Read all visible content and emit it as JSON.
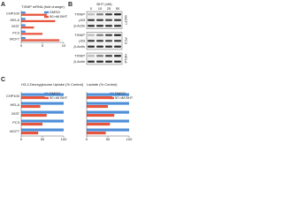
{
  "panels": {
    "a": "A",
    "b": "B",
    "c": "C"
  },
  "chart_data": [
    {
      "type": "hbar",
      "title": "TXNIP mRNA (fold change)",
      "categories": [
        "CHP100",
        "HELA",
        "293T",
        "PC3",
        "MCF7"
      ],
      "series": [
        {
          "name": "DMSO",
          "color": "#4f8fd8",
          "values": [
            1,
            1,
            1,
            1,
            1
          ]
        },
        {
          "name": "50 nM BHT",
          "color": "#e8553e",
          "values": [
            6,
            8,
            3,
            5,
            9
          ]
        }
      ],
      "xlim": [
        0,
        10
      ],
      "xticks": [
        0,
        5,
        10
      ],
      "legend": "top-right"
    },
    {
      "type": "hbar",
      "title": "H3-2-Deoxyglucose Uptake (% Control)",
      "categories": [
        "CHP100",
        "HELA",
        "293T",
        "PC3",
        "MCF7"
      ],
      "series": [
        {
          "name": "DMSO",
          "color": "#4f8fd8",
          "values": [
            100,
            100,
            100,
            100,
            100
          ]
        },
        {
          "name": "50 nM BHT",
          "color": "#e8553e",
          "values": [
            55,
            45,
            60,
            50,
            40
          ]
        }
      ],
      "xlim": [
        0,
        100
      ],
      "xticks": [
        0,
        50,
        100
      ],
      "legend": "top-right"
    },
    {
      "type": "hbar",
      "title": "Lactate (% Control)",
      "categories": [
        null,
        null,
        null,
        null,
        null
      ],
      "series": [
        {
          "name": "DMSO",
          "color": "#4f8fd8",
          "values": [
            100,
            100,
            100,
            100,
            100
          ]
        },
        {
          "name": "50 nM BHT",
          "color": "#e8553e",
          "values": [
            60,
            50,
            65,
            55,
            45
          ]
        }
      ],
      "xlim": [
        0,
        100
      ],
      "xticks": [
        0,
        50,
        100
      ],
      "legend": "top-right"
    }
  ],
  "blot": {
    "treatment": "BHT (nM)",
    "doses": [
      "0",
      "10",
      "25",
      "50"
    ],
    "groups": [
      {
        "cell": "MCF7",
        "bands": [
          "TXNIP",
          "p53",
          "β-Actin"
        ]
      },
      {
        "cell": "PC3",
        "bands": [
          "TXNIP",
          "p53",
          "β-Actin"
        ]
      },
      {
        "cell": "HELA",
        "bands": [
          "TXNIP",
          "β-Actin"
        ]
      }
    ]
  }
}
